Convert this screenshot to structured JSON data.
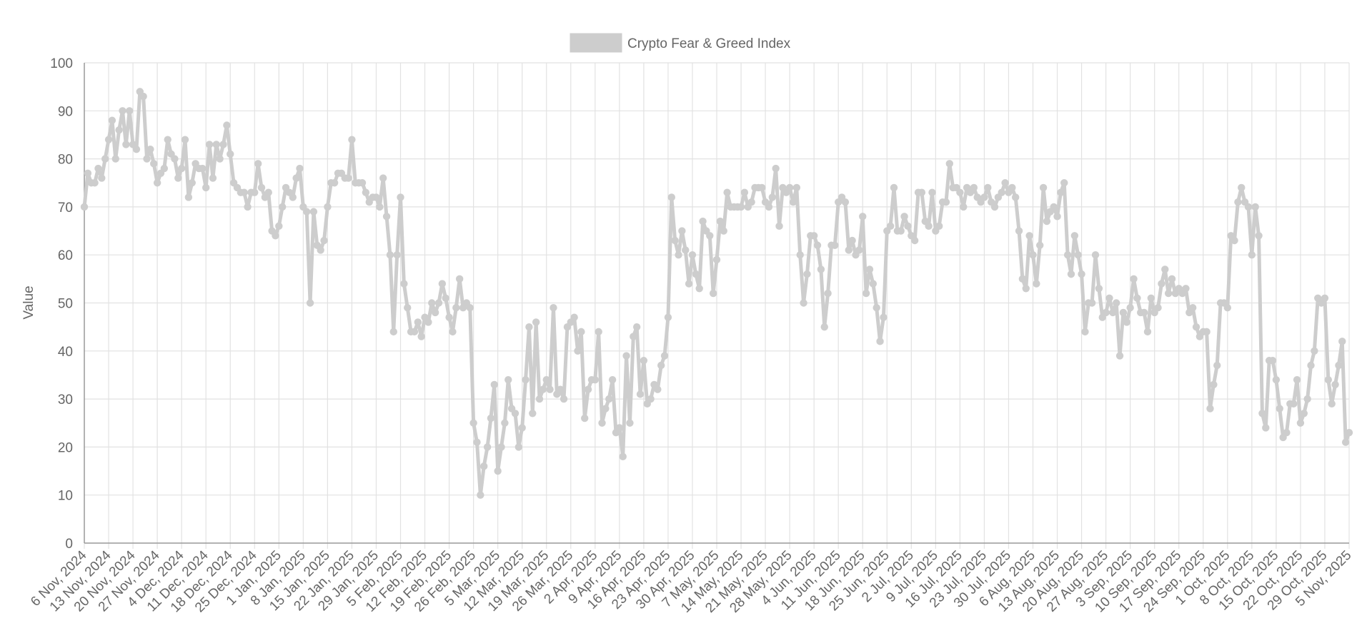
{
  "chart_data": {
    "type": "line",
    "title": "",
    "xlabel": "",
    "ylabel": "Value",
    "ylim": [
      0,
      100
    ],
    "y_ticks": [
      0,
      10,
      20,
      30,
      40,
      50,
      60,
      70,
      80,
      90,
      100
    ],
    "grid": true,
    "legend_position": "top-center",
    "color": "#cdcdcd",
    "x_tick_labels": [
      "6 Nov, 2024",
      "13 Nov, 2024",
      "20 Nov, 2024",
      "27 Nov, 2024",
      "4 Dec, 2024",
      "11 Dec, 2024",
      "18 Dec, 2024",
      "25 Dec, 2024",
      "1 Jan, 2025",
      "8 Jan, 2025",
      "15 Jan, 2025",
      "22 Jan, 2025",
      "29 Jan, 2025",
      "5 Feb, 2025",
      "12 Feb, 2025",
      "19 Feb, 2025",
      "26 Feb, 2025",
      "5 Mar, 2025",
      "12 Mar, 2025",
      "19 Mar, 2025",
      "26 Mar, 2025",
      "2 Apr, 2025",
      "9 Apr, 2025",
      "16 Apr, 2025",
      "23 Apr, 2025",
      "30 Apr, 2025",
      "7 May, 2025",
      "14 May, 2025",
      "21 May, 2025",
      "28 May, 2025",
      "4 Jun, 2025",
      "11 Jun, 2025",
      "18 Jun, 2025",
      "25 Jun, 2025",
      "2 Jul, 2025",
      "9 Jul, 2025",
      "16 Jul, 2025",
      "23 Jul, 2025",
      "30 Jul, 2025",
      "6 Aug, 2025",
      "13 Aug, 2025",
      "20 Aug, 2025",
      "27 Aug, 2025",
      "3 Sep, 2025",
      "10 Sep, 2025",
      "17 Sep, 2025",
      "24 Sep, 2025",
      "1 Oct, 2025",
      "8 Oct, 2025",
      "15 Oct, 2025",
      "22 Oct, 2025",
      "29 Oct, 2025",
      "5 Nov, 2025"
    ],
    "x_start": "2024-11-06",
    "x_end": "2025-11-05",
    "series": [
      {
        "name": "Crypto Fear & Greed Index",
        "values": [
          70,
          77,
          75,
          75,
          78,
          76,
          80,
          84,
          88,
          80,
          86,
          90,
          83,
          90,
          83,
          82,
          94,
          93,
          80,
          82,
          79,
          75,
          77,
          78,
          84,
          81,
          80,
          76,
          78,
          84,
          72,
          75,
          79,
          78,
          78,
          74,
          83,
          76,
          83,
          80,
          83,
          87,
          81,
          75,
          74,
          73,
          73,
          70,
          73,
          73,
          79,
          74,
          72,
          73,
          65,
          64,
          66,
          70,
          74,
          73,
          72,
          76,
          78,
          70,
          69,
          50,
          69,
          62,
          61,
          63,
          70,
          75,
          75,
          77,
          77,
          76,
          76,
          84,
          75,
          75,
          75,
          73,
          71,
          72,
          72,
          70,
          76,
          68,
          60,
          44,
          60,
          72,
          54,
          49,
          44,
          44,
          46,
          43,
          47,
          46,
          50,
          48,
          50,
          54,
          51,
          47,
          44,
          49,
          55,
          49,
          50,
          49,
          25,
          21,
          10,
          16,
          20,
          26,
          33,
          15,
          20,
          25,
          34,
          28,
          27,
          20,
          24,
          34,
          45,
          27,
          46,
          30,
          32,
          34,
          32,
          49,
          31,
          32,
          30,
          45,
          46,
          47,
          40,
          44,
          26,
          32,
          34,
          34,
          44,
          25,
          28,
          30,
          34,
          23,
          24,
          18,
          39,
          25,
          43,
          45,
          31,
          38,
          29,
          30,
          33,
          32,
          37,
          39,
          47,
          72,
          63,
          60,
          65,
          61,
          54,
          60,
          56,
          53,
          67,
          65,
          64,
          52,
          59,
          67,
          65,
          73,
          70,
          70,
          70,
          70,
          73,
          70,
          71,
          74,
          74,
          74,
          71,
          70,
          72,
          78,
          66,
          74,
          73,
          74,
          71,
          74,
          60,
          50,
          56,
          64,
          64,
          62,
          57,
          45,
          52,
          62,
          62,
          71,
          72,
          71,
          61,
          63,
          60,
          61,
          68,
          52,
          57,
          54,
          49,
          42,
          47,
          65,
          66,
          74,
          65,
          65,
          68,
          66,
          64,
          63,
          73,
          73,
          67,
          66,
          73,
          65,
          66,
          71,
          71,
          79,
          74,
          74,
          73,
          70,
          74,
          73,
          74,
          72,
          71,
          72,
          74,
          71,
          70,
          72,
          73,
          75,
          73,
          74,
          72,
          65,
          55,
          53,
          64,
          60,
          54,
          62,
          74,
          67,
          69,
          70,
          68,
          73,
          75,
          60,
          56,
          64,
          60,
          56,
          44,
          50,
          50,
          60,
          53,
          47,
          48,
          51,
          48,
          50,
          39,
          48,
          46,
          49,
          55,
          51,
          48,
          48,
          44,
          51,
          48,
          49,
          54,
          57,
          52,
          55,
          52,
          53,
          52,
          53,
          48,
          49,
          45,
          43,
          44,
          44,
          28,
          33,
          37,
          50,
          50,
          49,
          64,
          63,
          71,
          74,
          71,
          70,
          60,
          70,
          64,
          27,
          24,
          38,
          38,
          34,
          28,
          22,
          23,
          29,
          29,
          34,
          25,
          27,
          30,
          37,
          40,
          51,
          50,
          51,
          34,
          29,
          33,
          37,
          42,
          21,
          23
        ]
      }
    ]
  }
}
